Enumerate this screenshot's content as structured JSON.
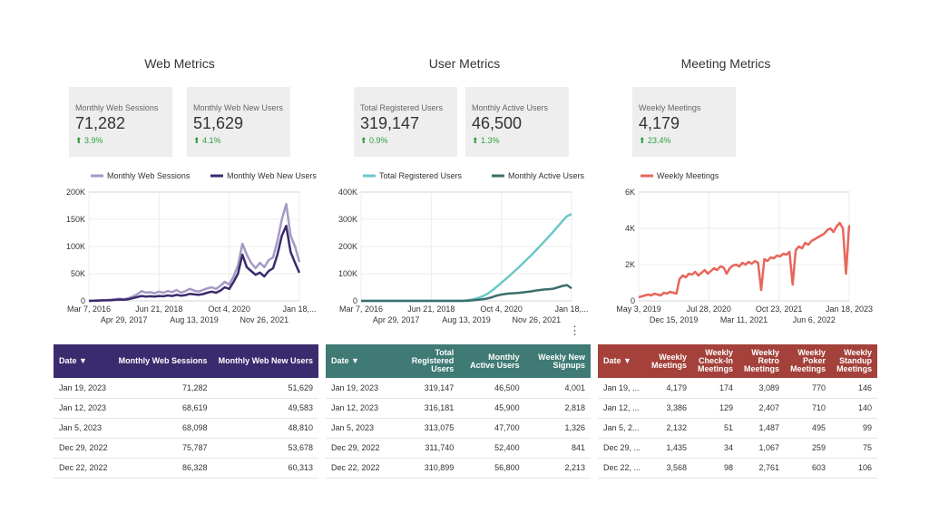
{
  "sections": [
    {
      "title": "Web Metrics"
    },
    {
      "title": "User Metrics"
    },
    {
      "title": "Meeting Metrics"
    }
  ],
  "kpis": [
    {
      "label": "Monthly Web Sessions",
      "value": "71,282",
      "change": "⬆ 3.9%"
    },
    {
      "label": "Monthly Web New Users",
      "value": "51,629",
      "change": "⬆ 4.1%"
    },
    {
      "label": "Total Registered Users",
      "value": "319,147",
      "change": "⬆ 0.9%"
    },
    {
      "label": "Monthly Active Users",
      "value": "46,500",
      "change": "⬆ 1.3%"
    },
    {
      "label": "Weekly Meetings",
      "value": "4,179",
      "change": "⬆ 23.4%"
    }
  ],
  "colors": {
    "web_sessions": "#a59ac4",
    "web_new_users": "#3b2a6e",
    "registered": "#6cc8c8",
    "active": "#3d6e6e",
    "meetings": "#e8665a",
    "header_web": "#3a2a6e",
    "header_user": "#3f7a74",
    "header_meet": "#a3413a",
    "kpi_up": "#2e9e3e"
  },
  "chart_data": [
    {
      "type": "line",
      "x_ticks_top": [
        "Mar 7, 2016",
        "Jun 21, 2018",
        "Oct 4, 2020",
        "Jan 18,..."
      ],
      "x_ticks_bottom": [
        "Apr 29, 2017",
        "Aug 13, 2019",
        "Nov 26, 2021"
      ],
      "y_ticks": [
        "0",
        "50K",
        "100K",
        "150K",
        "200K"
      ],
      "ylim": [
        0,
        200000
      ],
      "legend_position": "top",
      "series": [
        {
          "name": "Monthly Web Sessions",
          "color": "#a59ac4",
          "values": [
            0,
            500,
            1000,
            1200,
            1500,
            2000,
            3000,
            4000,
            3000,
            5000,
            8000,
            12000,
            18000,
            15000,
            16000,
            14000,
            17000,
            15000,
            18000,
            16000,
            20000,
            15000,
            18000,
            22000,
            19000,
            17000,
            20000,
            23000,
            25000,
            22000,
            28000,
            35000,
            30000,
            45000,
            65000,
            105000,
            85000,
            70000,
            60000,
            70000,
            62000,
            75000,
            80000,
            110000,
            150000,
            178000,
            120000,
            100000,
            71282
          ]
        },
        {
          "name": "Monthly Web New Users",
          "color": "#3b2a6e",
          "values": [
            0,
            200,
            500,
            800,
            1000,
            1200,
            1800,
            2500,
            2000,
            3000,
            5000,
            7000,
            9000,
            8000,
            8500,
            8000,
            9000,
            8500,
            10000,
            9000,
            11000,
            9500,
            10500,
            13000,
            12000,
            11000,
            12500,
            15000,
            17000,
            15000,
            19000,
            25000,
            22000,
            35000,
            50000,
            85000,
            62000,
            55000,
            48000,
            52000,
            45000,
            55000,
            60000,
            85000,
            120000,
            138000,
            90000,
            70000,
            51629
          ]
        }
      ]
    },
    {
      "type": "line",
      "x_ticks_top": [
        "Mar 7, 2016",
        "Jun 21, 2018",
        "Oct 4, 2020",
        "Jan 18,..."
      ],
      "x_ticks_bottom": [
        "Apr 29, 2017",
        "Aug 13, 2019",
        "Nov 26, 2021"
      ],
      "y_ticks": [
        "0",
        "100K",
        "200K",
        "300K",
        "400K"
      ],
      "ylim": [
        0,
        400000
      ],
      "legend_position": "top",
      "series": [
        {
          "name": "Total Registered Users",
          "color": "#6cc8c8",
          "values": [
            0,
            0,
            0,
            0,
            0,
            0,
            0,
            0,
            0,
            0,
            0,
            0,
            0,
            0,
            0,
            0,
            0,
            0,
            0,
            0,
            0,
            0,
            0,
            1000,
            3000,
            6000,
            10000,
            16000,
            24000,
            35000,
            48000,
            62000,
            76000,
            90000,
            105000,
            120000,
            136000,
            152000,
            168000,
            185000,
            202000,
            220000,
            238000,
            256000,
            275000,
            294000,
            312000,
            319147
          ]
        },
        {
          "name": "Monthly Active Users",
          "color": "#3d6e6e",
          "values": [
            0,
            0,
            0,
            0,
            0,
            0,
            0,
            0,
            0,
            0,
            0,
            0,
            0,
            0,
            0,
            0,
            0,
            0,
            0,
            0,
            0,
            0,
            0,
            0,
            1000,
            2000,
            4000,
            6000,
            8000,
            12000,
            18000,
            22000,
            25000,
            27000,
            28000,
            29000,
            31000,
            33000,
            35000,
            38000,
            40000,
            42000,
            43000,
            45000,
            50000,
            55000,
            58000,
            46500
          ]
        }
      ]
    },
    {
      "type": "line",
      "x_ticks_top": [
        "May 3, 2019",
        "Jul 28, 2020",
        "Oct 23, 2021",
        "Jan 18, 2023"
      ],
      "x_ticks_bottom": [
        "Dec 15, 2019",
        "Mar 11, 2021",
        "Jun 6, 2022"
      ],
      "y_ticks": [
        "0",
        "2K",
        "4K",
        "6K"
      ],
      "ylim": [
        0,
        6000
      ],
      "legend_position": "top",
      "series": [
        {
          "name": "Weekly Meetings",
          "color": "#e8665a",
          "values": [
            200,
            250,
            300,
            350,
            300,
            400,
            350,
            300,
            450,
            400,
            500,
            450,
            400,
            1200,
            1400,
            1300,
            1500,
            1450,
            1600,
            1400,
            1550,
            1700,
            1500,
            1650,
            1800,
            1700,
            1900,
            1850,
            1500,
            1800,
            1950,
            2000,
            1900,
            2100,
            2000,
            2150,
            2050,
            2200,
            2100,
            600,
            2300,
            2200,
            2400,
            2350,
            2500,
            2450,
            2600,
            2550,
            2700,
            900,
            2800,
            3000,
            2900,
            3200,
            3100,
            3300,
            3400,
            3500,
            3600,
            3700,
            3900,
            4000,
            3800,
            4100,
            4300,
            4000,
            1500,
            4179
          ]
        }
      ]
    }
  ],
  "tables": [
    {
      "headers": [
        "Date ▼",
        "Monthly Web Sessions",
        "Monthly Web New Users"
      ],
      "rows": [
        [
          "Jan 19, 2023",
          "71,282",
          "51,629"
        ],
        [
          "Jan 12, 2023",
          "68,619",
          "49,583"
        ],
        [
          "Jan 5, 2023",
          "68,098",
          "48,810"
        ],
        [
          "Dec 29, 2022",
          "75,787",
          "53,678"
        ],
        [
          "Dec 22, 2022",
          "86,328",
          "60,313"
        ]
      ]
    },
    {
      "headers": [
        "Date ▼",
        "Total Registered Users",
        "Monthly Active Users",
        "Weekly New Signups"
      ],
      "rows": [
        [
          "Jan 19, 2023",
          "319,147",
          "46,500",
          "4,001"
        ],
        [
          "Jan 12, 2023",
          "316,181",
          "45,900",
          "2,818"
        ],
        [
          "Jan 5, 2023",
          "313,075",
          "47,700",
          "1,326"
        ],
        [
          "Dec 29, 2022",
          "311,740",
          "52,400",
          "841"
        ],
        [
          "Dec 22, 2022",
          "310,899",
          "56,800",
          "2,213"
        ]
      ]
    },
    {
      "headers": [
        "Date ▼",
        "Weekly Meetings",
        "Weekly Check-In Meetings",
        "Weekly Retro Meetings",
        "Weekly Poker Meetings",
        "Weekly Standup Meetings"
      ],
      "rows": [
        [
          "Jan 19, ...",
          "4,179",
          "174",
          "3,089",
          "770",
          "146"
        ],
        [
          "Jan 12, ...",
          "3,386",
          "129",
          "2,407",
          "710",
          "140"
        ],
        [
          "Jan 5, 2...",
          "2,132",
          "51",
          "1,487",
          "495",
          "99"
        ],
        [
          "Dec 29, ...",
          "1,435",
          "34",
          "1,067",
          "259",
          "75"
        ],
        [
          "Dec 22, ...",
          "3,568",
          "98",
          "2,761",
          "603",
          "106"
        ]
      ]
    }
  ],
  "icons": {
    "menu": "more-vert-icon"
  }
}
